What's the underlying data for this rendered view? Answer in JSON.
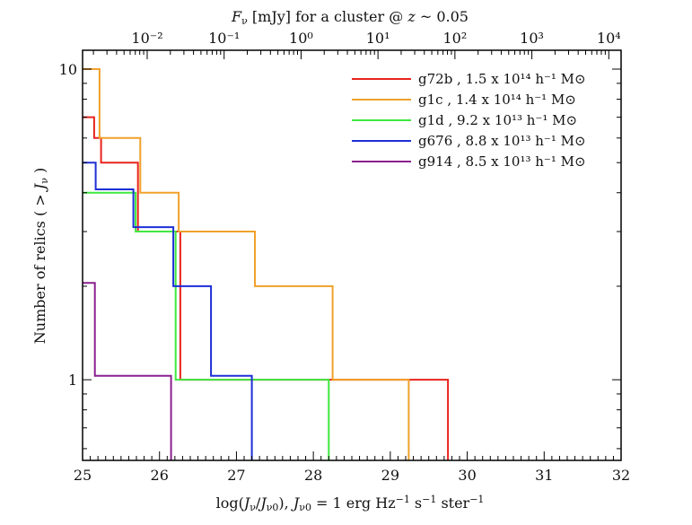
{
  "chart_data": {
    "type": "line",
    "subtype": "step",
    "xlabel": "log(Jν/Jν0),    Jν0 = 1 erg Hz⁻¹ s⁻¹ ster⁻¹",
    "ylabel": "Number of relics ( > Jν )",
    "top_label": "Fν [mJy] for a cluster @ z ~ 0.05",
    "xlim": [
      25,
      32
    ],
    "ylim": [
      0.55,
      11.5
    ],
    "yscale": "log",
    "x_ticks": [
      25,
      26,
      27,
      28,
      29,
      30,
      31,
      32
    ],
    "x_tick_labels": [
      "25",
      "26",
      "27",
      "28",
      "29",
      "30",
      "31",
      "32"
    ],
    "y_ticks": [
      1,
      10
    ],
    "y_tick_labels": [
      "1",
      "10"
    ],
    "top_ticks": [
      {
        "x": 25.84,
        "label": "10⁻²"
      },
      {
        "x": 26.84,
        "label": "10⁻¹"
      },
      {
        "x": 27.84,
        "label": "10⁰"
      },
      {
        "x": 28.84,
        "label": "10¹"
      },
      {
        "x": 29.84,
        "label": "10²"
      },
      {
        "x": 30.84,
        "label": "10³"
      },
      {
        "x": 31.84,
        "label": "10⁴"
      }
    ],
    "series": [
      {
        "name": "g72b",
        "color": "#e8231d",
        "legend": "g72b , 1.5 x 10¹⁴ h⁻¹ M⊙",
        "x": [
          25.0,
          25.15,
          25.15,
          25.24,
          25.24,
          25.72,
          25.72,
          26.27,
          26.27,
          29.75,
          29.75
        ],
        "y": [
          7.0,
          7.0,
          6.0,
          6.0,
          5.0,
          5.0,
          3.0,
          3.0,
          1.0,
          1.0,
          0.55
        ]
      },
      {
        "name": "g1c",
        "color": "#f0a12b",
        "legend": "g1c   , 1.4 x 10¹⁴ h⁻¹ M⊙",
        "x": [
          25.0,
          25.22,
          25.22,
          25.75,
          25.75,
          26.25,
          26.25,
          27.24,
          27.24,
          28.25,
          28.25,
          29.24,
          29.24
        ],
        "y": [
          10.0,
          10.0,
          6.0,
          6.0,
          4.0,
          4.0,
          3.0,
          3.0,
          2.0,
          2.0,
          1.0,
          1.0,
          0.55
        ]
      },
      {
        "name": "g1d",
        "color": "#3fe83f",
        "legend": "g1d    , 9.2 x 10¹³ h⁻¹ M⊙",
        "x": [
          25.0,
          25.69,
          25.69,
          26.21,
          26.21,
          28.2,
          28.2
        ],
        "y": [
          4.0,
          4.0,
          3.0,
          3.0,
          1.0,
          1.0,
          0.55
        ]
      },
      {
        "name": "g676",
        "color": "#1d2fd6",
        "legend": "g676 , 8.8 x 10¹³ h⁻¹ M⊙",
        "x": [
          25.0,
          25.17,
          25.17,
          25.66,
          25.66,
          26.18,
          26.18,
          26.67,
          26.67,
          27.2,
          27.2
        ],
        "y": [
          5.0,
          5.0,
          4.1,
          4.1,
          3.1,
          3.1,
          2.0,
          2.0,
          1.03,
          1.03,
          0.55
        ]
      },
      {
        "name": "g914",
        "color": "#8a1f8f",
        "legend": "g914 , 8.5 x 10¹³ h⁻¹ M⊙",
        "x": [
          25.0,
          25.16,
          25.16,
          26.15,
          26.15
        ],
        "y": [
          2.05,
          2.05,
          1.03,
          1.03,
          0.55
        ]
      }
    ],
    "legend_position": "top-right",
    "grid": false
  }
}
